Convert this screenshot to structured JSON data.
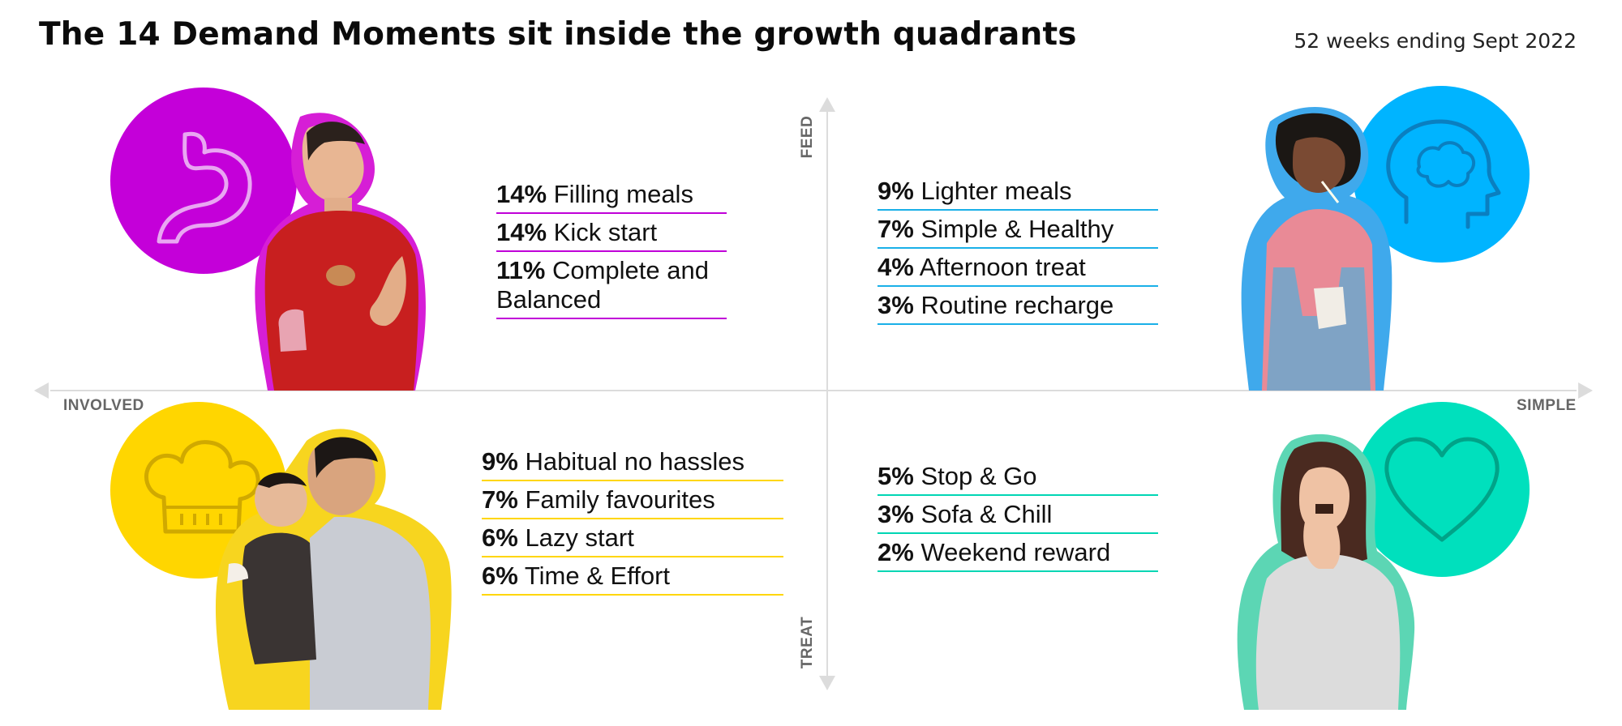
{
  "title": "The 14 Demand Moments sit inside the growth quadrants",
  "period": "52 weeks ending Sept 2022",
  "axes": {
    "top": "FEED",
    "bottom": "TREAT",
    "left": "INVOLVED",
    "right": "SIMPLE"
  },
  "colors": {
    "magenta": "#c000d8",
    "blue": "#00b4ff",
    "yellow": "#ffd600",
    "teal": "#00e0bd",
    "axis": "#dddddd"
  },
  "quadrants": {
    "top_left": {
      "icon": "stomach-icon",
      "items": [
        {
          "pct": "14%",
          "label": "Filling meals"
        },
        {
          "pct": "14%",
          "label": "Kick start"
        },
        {
          "pct": "11%",
          "label": "Complete and"
        },
        {
          "pct": "",
          "label": "Balanced"
        }
      ]
    },
    "top_right": {
      "icon": "brain-icon",
      "items": [
        {
          "pct": "9%",
          "label": "Lighter meals"
        },
        {
          "pct": "7%",
          "label": "Simple & Healthy"
        },
        {
          "pct": "4%",
          "label": "Afternoon treat"
        },
        {
          "pct": "3%",
          "label": "Routine recharge"
        }
      ]
    },
    "bottom_left": {
      "icon": "chef-hat-icon",
      "items": [
        {
          "pct": "9%",
          "label": "Habitual no hassles"
        },
        {
          "pct": "7%",
          "label": "Family favourites"
        },
        {
          "pct": "6%",
          "label": "Lazy start"
        },
        {
          "pct": "6%",
          "label": "Time & Effort"
        }
      ]
    },
    "bottom_right": {
      "icon": "heart-icon",
      "items": [
        {
          "pct": "5%",
          "label": "Stop & Go"
        },
        {
          "pct": "3%",
          "label": "Sofa & Chill"
        },
        {
          "pct": "2%",
          "label": "Weekend reward"
        }
      ]
    }
  }
}
